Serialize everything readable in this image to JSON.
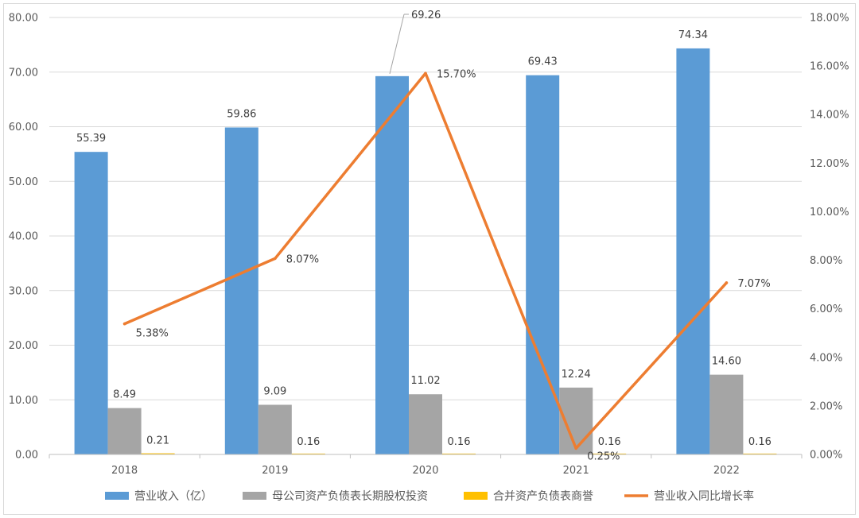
{
  "chart_data": {
    "type": "bar",
    "categories": [
      "2018",
      "2019",
      "2020",
      "2021",
      "2022"
    ],
    "series": [
      {
        "name": "营业收入（亿）",
        "kind": "bar",
        "axis": "left",
        "color": "#5b9bd5",
        "values": [
          55.39,
          59.86,
          69.26,
          69.43,
          74.34
        ],
        "labels": [
          "55.39",
          "59.86",
          "69.26",
          "69.43",
          "74.34"
        ]
      },
      {
        "name": "母公司资产负债表长期股权投资",
        "kind": "bar",
        "axis": "left",
        "color": "#a5a5a5",
        "values": [
          8.49,
          9.09,
          11.02,
          12.24,
          14.6
        ],
        "labels": [
          "8.49",
          "9.09",
          "11.02",
          "12.24",
          "14.60"
        ]
      },
      {
        "name": "合并资产负债表商誉",
        "kind": "bar",
        "axis": "left",
        "color": "#ffc000",
        "values": [
          0.21,
          0.16,
          0.16,
          0.16,
          0.16
        ],
        "labels": [
          "0.21",
          "0.16",
          "0.16",
          "0.16",
          "0.16"
        ]
      },
      {
        "name": "营业收入同比增长率",
        "kind": "line",
        "axis": "right",
        "color": "#ed7d31",
        "values": [
          5.38,
          8.07,
          15.7,
          0.25,
          7.07
        ],
        "labels": [
          "5.38%",
          "8.07%",
          "15.70%",
          "0.25%",
          "7.07%"
        ]
      }
    ],
    "left_axis": {
      "ylim": [
        0,
        80
      ],
      "ticks": [
        "0.00",
        "10.00",
        "20.00",
        "30.00",
        "40.00",
        "50.00",
        "60.00",
        "70.00",
        "80.00"
      ]
    },
    "right_axis": {
      "ylim": [
        0,
        18
      ],
      "ticks": [
        "0.00%",
        "2.00%",
        "4.00%",
        "6.00%",
        "8.00%",
        "10.00%",
        "12.00%",
        "14.00%",
        "16.00%",
        "18.00%"
      ]
    },
    "grid": true,
    "legend": "bottom"
  }
}
